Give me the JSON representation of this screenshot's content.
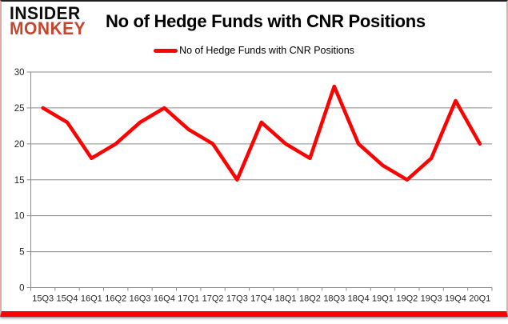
{
  "logo": {
    "line1": "INSIDER",
    "line2": "MONKEY",
    "accent_color": "#c7452e"
  },
  "chart_data": {
    "type": "line",
    "title": "No of Hedge Funds with CNR Positions",
    "legend": "No of Hedge Funds with CNR Positions",
    "legend_position": "top",
    "categories": [
      "15Q3",
      "15Q4",
      "16Q1",
      "16Q2",
      "16Q3",
      "16Q4",
      "17Q1",
      "17Q2",
      "17Q3",
      "17Q4",
      "18Q1",
      "18Q2",
      "18Q3",
      "18Q4",
      "19Q1",
      "19Q2",
      "19Q3",
      "19Q4",
      "20Q1"
    ],
    "values": [
      25,
      23,
      18,
      20,
      23,
      25,
      22,
      20,
      15,
      23,
      20,
      18,
      28,
      20,
      17,
      15,
      18,
      26,
      20
    ],
    "xlabel": "",
    "ylabel": "",
    "ylim": [
      0,
      30
    ],
    "yticks": [
      0,
      5,
      10,
      15,
      20,
      25,
      30
    ],
    "grid": true,
    "series_color": "#fe0000",
    "grid_color": "#8c8c8c",
    "tick_label_color": "#262626"
  },
  "frame": {
    "bottom_bar_color": "#fe0000"
  }
}
